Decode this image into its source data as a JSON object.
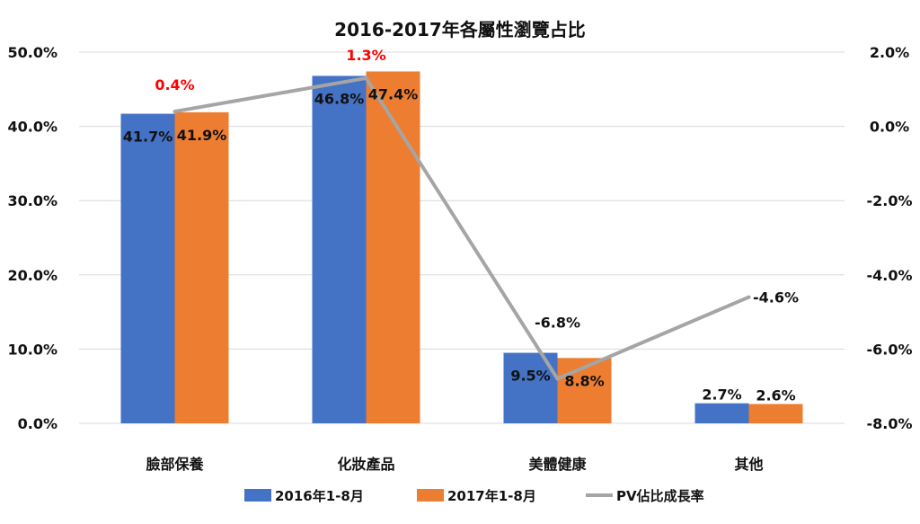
{
  "chart_data": {
    "type": "bar",
    "title": "2016-2017年各屬性瀏覽占比",
    "categories": [
      "臉部保養",
      "化妝產品",
      "美體健康",
      "其他"
    ],
    "series": [
      {
        "name": "2016年1-8月",
        "kind": "bar",
        "axis": "left",
        "color": "#4472C4",
        "values": [
          41.7,
          46.8,
          9.5,
          2.7
        ],
        "labels": [
          "41.7%",
          "46.8%",
          "9.5%",
          "2.7%"
        ]
      },
      {
        "name": "2017年1-8月",
        "kind": "bar",
        "axis": "left",
        "color": "#ED7D31",
        "values": [
          41.9,
          47.4,
          8.8,
          2.6
        ],
        "labels": [
          "41.9%",
          "47.4%",
          "8.8%",
          "2.6%"
        ]
      },
      {
        "name": "PV佔比成長率",
        "kind": "line",
        "axis": "right",
        "color": "#A5A5A5",
        "values": [
          0.4,
          1.3,
          -6.8,
          -4.6
        ],
        "labels": [
          "0.4%",
          "1.3%",
          "-6.8%",
          "-4.6%"
        ],
        "label_colors": [
          "#FF0000",
          "#FF0000",
          "#111111",
          "#111111"
        ]
      }
    ],
    "y_left": {
      "min": 0,
      "max": 50,
      "ticks": [
        "50.0%",
        "40.0%",
        "30.0%",
        "20.0%",
        "10.0%",
        "0.0%"
      ]
    },
    "y_right": {
      "min": -8,
      "max": 2,
      "ticks": [
        "2.0%",
        "0.0%",
        "-2.0%",
        "-4.0%",
        "-6.0%",
        "-8.0%"
      ]
    },
    "grid": true,
    "legend_position": "bottom"
  }
}
